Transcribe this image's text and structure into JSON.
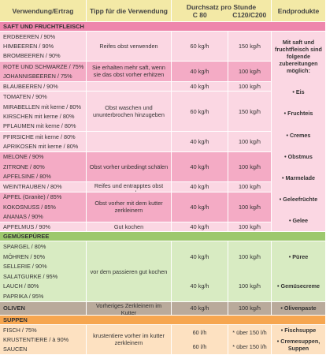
{
  "header": {
    "col1": "Verwendung/Ertrag",
    "col2": "Tipp für die Verwendung",
    "throughput": "Durchsatz pro Stunde",
    "c80": "C 80",
    "c120": "C120/C200",
    "col5": "Endprodukte"
  },
  "sections": [
    {
      "title": "SAFT UND FRUCHTFLEISCH",
      "groups": [
        {
          "items": [
            "ERDBEEREN / 90%",
            "HIMBEEREN / 90%",
            "BROMBEEREN / 90%"
          ],
          "tip": "Reifes obst verwenden",
          "c80": [
            "60 kg/h"
          ],
          "c120": [
            "150 kg/h"
          ]
        },
        {
          "items": [
            "ROTE UND SCHWARZE / 75%",
            "JOHANNISBEEREN / 75%"
          ],
          "tip": "Sie erhalten mehr saft, wenn sie das obst vorher erhitzen",
          "c80": [
            "40 kg/h"
          ],
          "c120": [
            "100 kg/h"
          ]
        },
        {
          "items": [
            "BLAUBEEREN / 90%"
          ],
          "tip": "",
          "c80": [
            "40 kg/h"
          ],
          "c120": [
            "100 kg/h"
          ]
        },
        {
          "items": [
            "TOMATEN / 90%",
            "MIRABELLEN mit kerne / 80%",
            "KIRSCHEN mit kerne / 80%",
            "PFLAUMEN mit kerne / 80%"
          ],
          "tip": "Obst waschen und ununterbrochen hinzugeben",
          "c80": [
            "60 kg/h"
          ],
          "c120": [
            "150 kg/h"
          ]
        },
        {
          "items": [
            "PFIRSICHE mit kerne / 80%",
            "APRIKOSEN mit kerne / 80%"
          ],
          "tip": "",
          "c80": [
            "40 kg/h"
          ],
          "c120": [
            "100 kg/h"
          ]
        },
        {
          "items": [
            "MELONE / 90%",
            "ZITRONE / 80%",
            "APFELSINE / 80%"
          ],
          "tip": "Obst vorher unbedingt schälen",
          "c80": [
            "40 kg/h"
          ],
          "c120": [
            "100 kg/h"
          ]
        },
        {
          "items": [
            "WEINTRAUBEN / 80%"
          ],
          "tip": "Reifes und entrapptes obst verwenden",
          "c80": [
            "40 kg/h"
          ],
          "c120": [
            "100 kg/h"
          ]
        },
        {
          "items": [
            "ÄPFEL (Granite) / 85%",
            "KOKOSNUSS / 85%",
            "ANANAS / 90%"
          ],
          "tip": "Obst vorher mit dem kutter zerkleinern",
          "c80": [
            "40 kg/h"
          ],
          "c120": [
            "100 kg/h"
          ]
        },
        {
          "items": [
            "APFELMUS / 90%"
          ],
          "tip": "Gut kochen",
          "c80": [
            "40 kg/h"
          ],
          "c120": [
            "100 kg/h"
          ]
        }
      ],
      "products": [
        "Mit saft und fruchtfleisch sind folgende zubereitungen möglich:",
        "• Eis",
        "• Fruchteis",
        "• Cremes",
        "• Obstmus",
        "• Marmelade",
        "• Geleefrüchte",
        "• Gelee"
      ]
    },
    {
      "title": "GEMÜSEPÜREE",
      "groups": [
        {
          "items": [
            "SPARGEL / 80%",
            "MÖHREN / 90%",
            "SELLERIE / 90%",
            "SALATGURKE / 95%",
            "LAUCH / 80%",
            "PAPRIKA / 95%"
          ],
          "tip": "vor dem passieren gut kochen",
          "c80": [
            "40 kg/h",
            "40 kg/h"
          ],
          "c120": [
            "100 kg/h",
            "100 kg/h"
          ]
        }
      ],
      "products": [
        "• Püree",
        "• Gemüsecreme"
      ]
    },
    {
      "title": "OLIVEN",
      "groups": [
        {
          "items": [],
          "tip": "Vorheriges Zerkleinern im Kutter",
          "c80": [
            "40 kg/h"
          ],
          "c120": [
            "100 kg/h"
          ]
        }
      ],
      "products": [
        "• Olivenpaste"
      ]
    },
    {
      "title": "SUPPEN",
      "groups": [
        {
          "items": [
            "FISCH / 75%",
            "KRUSTENTIERE / à 90%",
            "SAUCEN"
          ],
          "tip": "krustentiere vorher im kutter zerkleinern",
          "c80": [
            "60 l/h",
            "60 l/h"
          ],
          "c120": [
            "* über 150 l/h",
            "* über 150 l/h"
          ]
        }
      ],
      "products": [
        "• Fischsuppe",
        "• Cremesuppen, Suppen"
      ]
    }
  ]
}
